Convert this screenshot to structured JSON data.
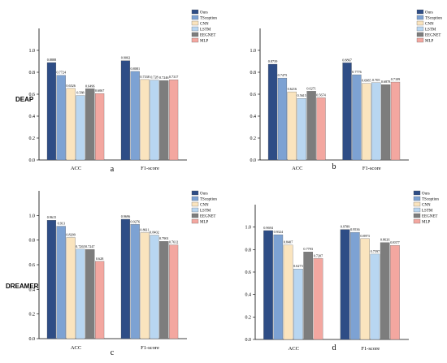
{
  "row_labels": [
    "DEAP",
    "DREAMER"
  ],
  "series_names": [
    "Ours",
    "TScoption",
    "CNN",
    "LSTM",
    "EEGNET",
    "MLP"
  ],
  "colors": {
    "Ours": "#2e4d86",
    "TScoption": "#7da2d3",
    "CNN": "#fae4be",
    "LSTM": "#b8d6f1",
    "EEGNET": "#7d7d7d",
    "MLP": "#f3a7a0"
  },
  "chart_data": [
    {
      "type": "bar",
      "panel": "a",
      "row": "DEAP",
      "categories": [
        "ACC",
        "F1-score"
      ],
      "legend": [
        "Ours",
        "TScoption",
        "CNN",
        "LSTM",
        "EEGNET",
        "MLP"
      ],
      "series": [
        {
          "name": "Ours",
          "values": [
            0.8888,
            0.9062
          ]
        },
        {
          "name": "TScoption",
          "values": [
            0.7724,
            0.8081
          ]
        },
        {
          "name": "CNN",
          "values": [
            0.6526,
            0.7338
          ]
        },
        {
          "name": "LSTM",
          "values": [
            0.588,
            0.728
          ]
        },
        {
          "name": "EEGNET",
          "values": [
            0.6496,
            0.7246
          ]
        },
        {
          "name": "MLP",
          "values": [
            0.6067,
            0.7317
          ]
        }
      ],
      "value_labels": [
        [
          "0.8888",
          "0.9062"
        ],
        [
          "0.7724",
          "0.8081"
        ],
        [
          "0.6526",
          "0.7338"
        ],
        [
          "0.588",
          "0.728"
        ],
        [
          "0.6496",
          "0.7246"
        ],
        [
          "0.6067",
          "0.7317"
        ]
      ],
      "ylim": [
        0,
        1.2
      ],
      "yticks": [
        "0.0",
        "0.2",
        "0.4",
        "0.6",
        "0.8",
        "1.0"
      ],
      "grid": false,
      "legend_position": "top-right"
    },
    {
      "type": "bar",
      "panel": "b",
      "row": "DEAP",
      "categories": [
        "ACC",
        "F1-score"
      ],
      "legend": [
        "Ours",
        "TScoption",
        "CNN",
        "LSTM",
        "EEGNET",
        "MLP"
      ],
      "series": [
        {
          "name": "Ours",
          "values": [
            0.8739,
            0.8867
          ]
        },
        {
          "name": "TScoption",
          "values": [
            0.7475,
            0.7776
          ]
        },
        {
          "name": "CNN",
          "values": [
            0.6216,
            0.6985
          ]
        },
        {
          "name": "LSTM",
          "values": [
            0.5615,
            0.705
          ]
        },
        {
          "name": "EEGNET",
          "values": [
            0.6271,
            0.6878
          ]
        },
        {
          "name": "MLP",
          "values": [
            0.5674,
            0.7109
          ]
        }
      ],
      "value_labels": [
        [
          "0.8739",
          "0.8867"
        ],
        [
          "0.7475",
          "0.7776"
        ],
        [
          "0.6216",
          "0.6985"
        ],
        [
          "0.5615",
          "0.705"
        ],
        [
          "0.6271",
          "0.6878"
        ],
        [
          "0.5674",
          "0.7109"
        ]
      ],
      "ylim": [
        0,
        1.2
      ],
      "yticks": [
        "0.0",
        "0.2",
        "0.4",
        "0.6",
        "0.8",
        "1.0"
      ],
      "grid": false,
      "legend_position": "top-right"
    },
    {
      "type": "bar",
      "panel": "c",
      "row": "DREAMER",
      "categories": [
        "ACC",
        "F1-score"
      ],
      "legend": [
        "Ours",
        "TScoption",
        "CNN",
        "LSTM",
        "EEGNET",
        "MLP"
      ],
      "series": [
        {
          "name": "Ours",
          "values": [
            0.9615,
            0.9696
          ]
        },
        {
          "name": "TScoption",
          "values": [
            0.913,
            0.9276
          ]
        },
        {
          "name": "CNN",
          "values": [
            0.8209,
            0.8611
          ]
        },
        {
          "name": "LSTM",
          "values": [
            0.7265,
            0.8402
          ]
        },
        {
          "name": "EEGNET",
          "values": [
            0.7247,
            0.7901
          ]
        },
        {
          "name": "MLP",
          "values": [
            0.628,
            0.7612
          ]
        }
      ],
      "value_labels": [
        [
          "0.9615",
          "0.9696"
        ],
        [
          "0.913",
          "0.9276"
        ],
        [
          "0.8209",
          "0.8611"
        ],
        [
          "0.7265",
          "0.8402"
        ],
        [
          "0.7247",
          "0.7901"
        ],
        [
          "0.628",
          "0.7612"
        ]
      ],
      "ylim": [
        0,
        1.2
      ],
      "yticks": [
        "0.0",
        "0.2",
        "0.4",
        "0.6",
        "0.8",
        "1.0"
      ],
      "grid": false,
      "legend_position": "top-right"
    },
    {
      "type": "bar",
      "panel": "d",
      "row": "DREAMER",
      "categories": [
        "ACC",
        "F1-score"
      ],
      "legend": [
        "Ours",
        "TScoption",
        "CNN",
        "LSTM",
        "EEGNET",
        "MLP"
      ],
      "series": [
        {
          "name": "Ours",
          "values": [
            0.9694,
            0.9789
          ]
        },
        {
          "name": "TScoption",
          "values": [
            0.9324,
            0.9536
          ]
        },
        {
          "name": "CNN",
          "values": [
            0.8407,
            0.8973
          ]
        },
        {
          "name": "LSTM",
          "values": [
            0.6273,
            0.7597
          ]
        },
        {
          "name": "EEGNET",
          "values": [
            0.7793,
            0.8626
          ]
        },
        {
          "name": "MLP",
          "values": [
            0.7207,
            0.8377
          ]
        }
      ],
      "value_labels": [
        [
          "0.9694",
          "0.9789"
        ],
        [
          "0.9324",
          "0.9536"
        ],
        [
          "0.8407",
          "0.8973"
        ],
        [
          "0.6273",
          "0.7597"
        ],
        [
          "0.7793",
          "0.8626"
        ],
        [
          "0.7207",
          "0.8377"
        ]
      ],
      "ylim": [
        0,
        1.2
      ],
      "yticks": [
        "0.0",
        "0.2",
        "0.4",
        "0.6",
        "0.8",
        "1.0"
      ],
      "grid": false,
      "legend_position": "top-right"
    }
  ]
}
